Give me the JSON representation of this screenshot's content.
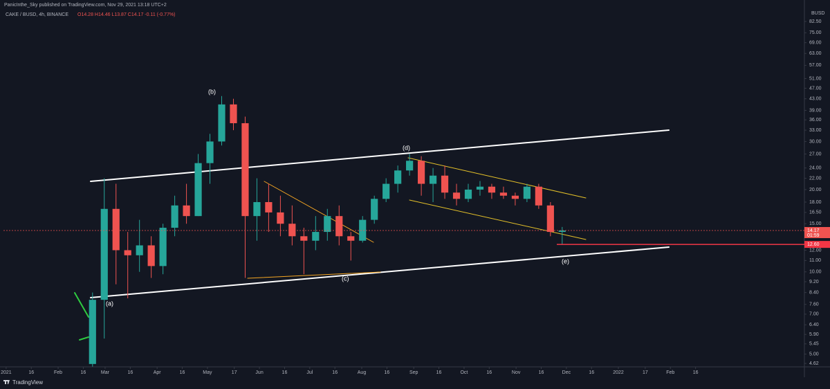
{
  "publisher": "PanicInthe_Sky published on TradingView.com, Nov 29, 2021 13:18 UTC+2",
  "brand": "TradingView",
  "chart_data": {
    "type": "candlestick",
    "title": "CAKE / BUSD, 4h, BINANCE",
    "ohlc_text": "O14.28 H14.46 L13.87 C14.17 -0.11 (-0.77%)",
    "currency": "BUSD",
    "log_scale": true,
    "grid": false,
    "up_color": "#26a69a",
    "down_color": "#ef5350",
    "x": [
      48,
      55,
      62,
      69,
      76,
      83,
      90,
      97,
      104,
      111,
      118,
      125,
      132,
      139,
      146,
      153,
      160,
      167,
      174,
      181,
      188,
      195,
      202,
      209,
      216,
      223,
      230,
      237,
      244,
      251,
      258,
      265,
      272,
      279,
      286,
      293,
      300,
      307,
      314,
      321,
      328
    ],
    "open": [
      4.6,
      7.9,
      17,
      12,
      11.5,
      12.5,
      10.5,
      14.5,
      17.5,
      16,
      25,
      30,
      41,
      35,
      16,
      18,
      16.5,
      15,
      13.5,
      13,
      14,
      16,
      13.5,
      13,
      15.5,
      18.5,
      21,
      23.5,
      25.5,
      21,
      22.5,
      19.5,
      18.5,
      20,
      20.5,
      19.5,
      19,
      18.5,
      20.5,
      17.5,
      14
    ],
    "high": [
      8.4,
      22,
      21,
      14,
      15.5,
      13.5,
      15,
      19,
      21,
      27,
      32,
      44,
      43,
      37,
      22,
      21,
      19,
      17.5,
      14.5,
      16,
      17,
      17.5,
      14,
      16,
      19,
      22,
      24.5,
      27,
      26.5,
      24,
      24.5,
      21,
      21,
      21.5,
      21,
      20.5,
      19.5,
      21,
      21,
      18,
      14.6
    ],
    "low": [
      4.5,
      5.7,
      9,
      8,
      10,
      9.5,
      9.8,
      13.5,
      15,
      16,
      21,
      29,
      33,
      9.5,
      13,
      14,
      13.5,
      12.5,
      9.8,
      12,
      13,
      12.5,
      11,
      12.8,
      15,
      18,
      19.5,
      22.5,
      19,
      18,
      18.5,
      17.5,
      18,
      19,
      18.5,
      18.5,
      17.5,
      18,
      17,
      13.5,
      12.6
    ],
    "close": [
      7.9,
      17,
      12,
      11.5,
      12.5,
      10.5,
      14.5,
      17.5,
      16,
      25,
      30,
      41,
      35,
      16,
      18,
      16.5,
      15,
      13.5,
      13,
      14,
      16,
      13.5,
      13,
      15.5,
      18.5,
      21,
      23.5,
      25.5,
      21,
      22.5,
      19.5,
      18.5,
      20,
      20.5,
      19.5,
      19,
      18.5,
      20.5,
      17.5,
      14,
      14.17
    ],
    "xlim": [
      -1.6,
      475.9
    ],
    "ylim": [
      4.49,
      91.1
    ],
    "xticks": [
      {
        "value": 0,
        "label": "2021"
      },
      {
        "value": 15,
        "label": "16"
      },
      {
        "value": 31,
        "label": "Feb"
      },
      {
        "value": 46,
        "label": "16"
      },
      {
        "value": 59,
        "label": "Mar"
      },
      {
        "value": 74,
        "label": "16"
      },
      {
        "value": 90,
        "label": "Apr"
      },
      {
        "value": 105,
        "label": "16"
      },
      {
        "value": 120,
        "label": "May"
      },
      {
        "value": 136,
        "label": "17"
      },
      {
        "value": 151,
        "label": "Jun"
      },
      {
        "value": 166,
        "label": "16"
      },
      {
        "value": 181,
        "label": "Jul"
      },
      {
        "value": 196,
        "label": "16"
      },
      {
        "value": 212,
        "label": "Aug"
      },
      {
        "value": 227,
        "label": "16"
      },
      {
        "value": 243,
        "label": "Sep"
      },
      {
        "value": 258,
        "label": "16"
      },
      {
        "value": 273,
        "label": "Oct"
      },
      {
        "value": 288,
        "label": "16"
      },
      {
        "value": 304,
        "label": "Nov"
      },
      {
        "value": 319,
        "label": "16"
      },
      {
        "value": 334,
        "label": "Dec"
      },
      {
        "value": 349,
        "label": "16"
      },
      {
        "value": 365,
        "label": "2022"
      },
      {
        "value": 381,
        "label": "17"
      },
      {
        "value": 396,
        "label": "Feb"
      },
      {
        "value": 411,
        "label": "16"
      }
    ],
    "yticks": [
      {
        "value": 82.5,
        "label": "82.50"
      },
      {
        "value": 75,
        "label": "75.00"
      },
      {
        "value": 69,
        "label": "69.00"
      },
      {
        "value": 63,
        "label": "63.00"
      },
      {
        "value": 57,
        "label": "57.00"
      },
      {
        "value": 51,
        "label": "51.00"
      },
      {
        "value": 47,
        "label": "47.00"
      },
      {
        "value": 43,
        "label": "43.00"
      },
      {
        "value": 39,
        "label": "39.00"
      },
      {
        "value": 36,
        "label": "36.00"
      },
      {
        "value": 33,
        "label": "33.00"
      },
      {
        "value": 30,
        "label": "30.00"
      },
      {
        "value": 27,
        "label": "27.00"
      },
      {
        "value": 24,
        "label": "24.00"
      },
      {
        "value": 22,
        "label": "22.00"
      },
      {
        "value": 20,
        "label": "20.00"
      },
      {
        "value": 18,
        "label": "18.00"
      },
      {
        "value": 16.5,
        "label": "16.50"
      },
      {
        "value": 15,
        "label": "15.00"
      },
      {
        "value": 12,
        "label": "12.00"
      },
      {
        "value": 11,
        "label": "11.00"
      },
      {
        "value": 10,
        "label": "10.00"
      },
      {
        "value": 9.2,
        "label": "9.20"
      },
      {
        "value": 8.4,
        "label": "8.40"
      },
      {
        "value": 7.6,
        "label": "7.60"
      },
      {
        "value": 7,
        "label": "7.00"
      },
      {
        "value": 6.4,
        "label": "6.40"
      },
      {
        "value": 5.9,
        "label": "5.90"
      },
      {
        "value": 5.45,
        "label": "5.45"
      },
      {
        "value": 5,
        "label": "5.00"
      },
      {
        "value": 4.62,
        "label": "4.62"
      }
    ],
    "last_price": 14.17,
    "countdown": "01:59",
    "level": {
      "value": 12.6,
      "label": "12.60"
    },
    "annotations": [
      "(a)",
      "(b)",
      "(c)",
      "(d)",
      "(e)"
    ]
  }
}
